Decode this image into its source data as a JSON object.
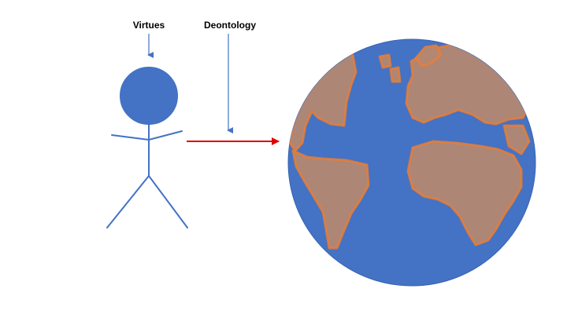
{
  "labels": {
    "virtues": "Virtues",
    "deontology": "Deontology"
  },
  "colors": {
    "figure": "#4472C4",
    "arrow_label": "#4472C4",
    "arrow_main": "#E00000",
    "ocean": "#4472C4",
    "land": "#B38772",
    "land_outline": "#ED7D31"
  },
  "icons": {
    "figure": "stick-figure-icon",
    "globe": "globe-icon"
  }
}
